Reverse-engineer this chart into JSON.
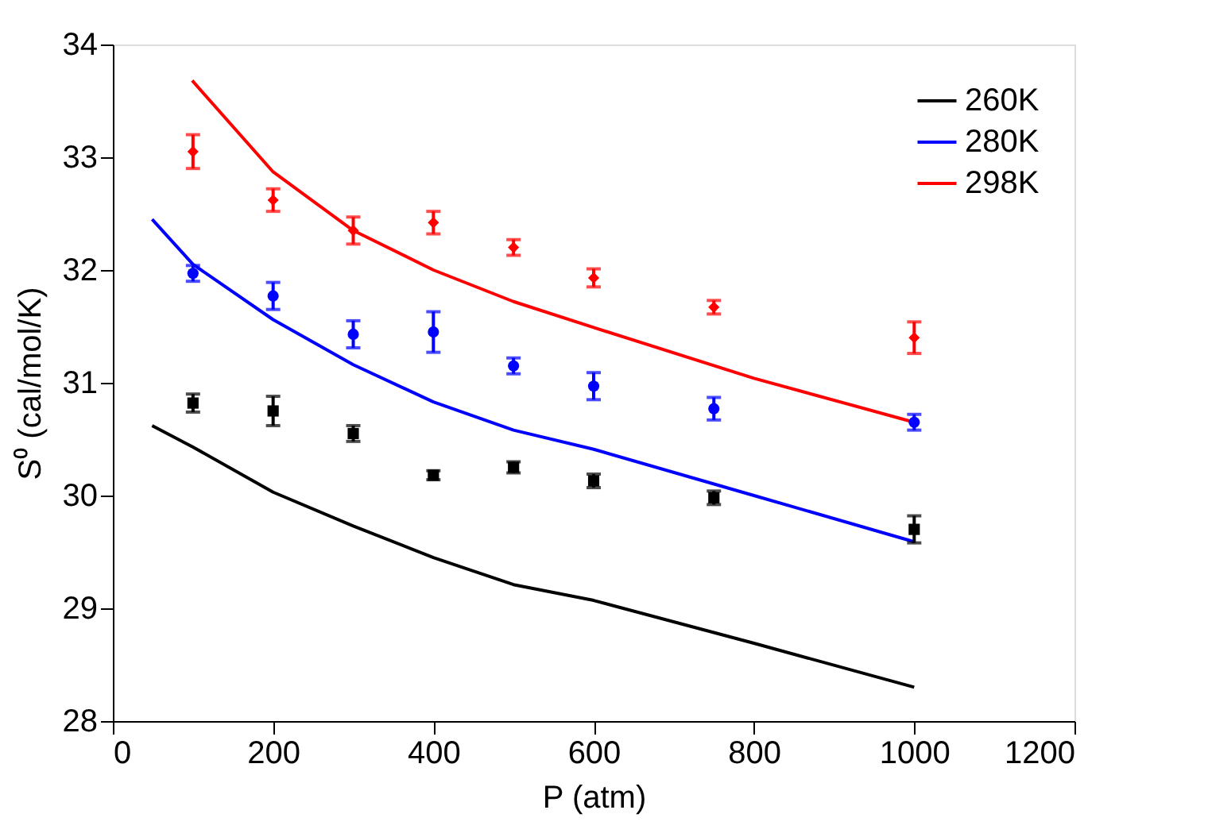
{
  "chart_data": {
    "type": "line",
    "xlabel": "P (atm)",
    "ylabel": "S⁰ (cal/mol/K)",
    "xlim": [
      0,
      1200
    ],
    "xticks": [
      0,
      200,
      400,
      600,
      800,
      1000,
      1200
    ],
    "ylim": [
      28,
      34
    ],
    "yticks": [
      28,
      29,
      30,
      31,
      32,
      33,
      34
    ],
    "grid": false,
    "legend": "top right",
    "line_style": "solid",
    "series": [
      {
        "name": "260K",
        "color": "#000000",
        "x": [
          49,
          100,
          200,
          300,
          400,
          500,
          600,
          800,
          1000
        ],
        "values": [
          30.62,
          30.43,
          30.03,
          29.73,
          29.45,
          29.21,
          29.07,
          28.69,
          28.3
        ]
      },
      {
        "name": "280K",
        "color": "#0000ff",
        "x": [
          49,
          100,
          200,
          300,
          400,
          500,
          600,
          800,
          1000
        ],
        "values": [
          32.45,
          32.05,
          31.56,
          31.16,
          30.83,
          30.58,
          30.41,
          30.0,
          29.59
        ]
      },
      {
        "name": "298K",
        "color": "#ff0000",
        "x": [
          99,
          200,
          300,
          400,
          500,
          600,
          800,
          1000
        ],
        "values": [
          33.68,
          32.87,
          32.35,
          32.0,
          31.72,
          31.49,
          31.04,
          30.65
        ]
      },
      {
        "color": "#000000",
        "type": "scatter",
        "marker": "square",
        "x": [
          100,
          200,
          300,
          400,
          500,
          600,
          750,
          1000
        ],
        "values": [
          30.82,
          30.75,
          30.55,
          30.18,
          30.25,
          30.13,
          29.98,
          29.7
        ],
        "errors": [
          0.08,
          0.13,
          0.07,
          0.04,
          0.05,
          0.06,
          0.06,
          0.12
        ]
      },
      {
        "color": "#0000ff",
        "type": "scatter",
        "marker": "circle",
        "x": [
          100,
          200,
          300,
          400,
          500,
          600,
          750,
          1000
        ],
        "values": [
          31.97,
          31.77,
          31.43,
          31.45,
          31.15,
          30.97,
          30.77,
          30.65
        ],
        "errors": [
          0.07,
          0.12,
          0.12,
          0.18,
          0.07,
          0.12,
          0.1,
          0.07
        ]
      },
      {
        "color": "#ff0000",
        "type": "scatter",
        "marker": "diamond",
        "x": [
          100,
          200,
          300,
          400,
          500,
          600,
          750,
          1000
        ],
        "values": [
          33.05,
          32.62,
          32.35,
          32.42,
          32.2,
          31.93,
          31.67,
          31.4
        ],
        "errors": [
          0.15,
          0.1,
          0.12,
          0.1,
          0.07,
          0.08,
          0.06,
          0.14
        ]
      }
    ]
  }
}
